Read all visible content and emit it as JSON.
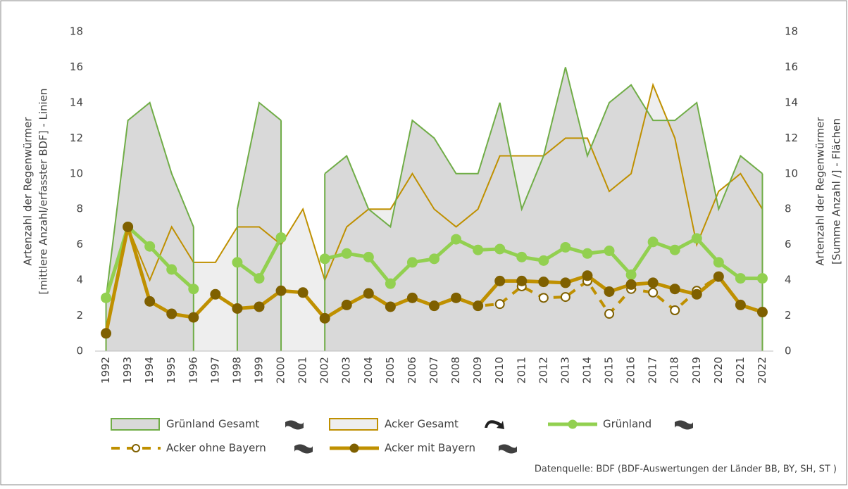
{
  "chart_data": {
    "type": "line",
    "ylabel": [
      "Artenzahl der Regenwürmer",
      "[mittlere Anzahl/erfasster BDF] - Linien"
    ],
    "y2label": [
      "Artenzahl der Regenwürmer",
      "[Summe Anzahl /] - Flächen"
    ],
    "categories": [
      "1992",
      "1993",
      "1994",
      "1995",
      "1996",
      "1997",
      "1998",
      "1999",
      "2000",
      "2001",
      "2002",
      "2003",
      "2004",
      "2005",
      "2006",
      "2007",
      "2008",
      "2009",
      "2010",
      "2011",
      "2012",
      "2013",
      "2014",
      "2015",
      "2016",
      "2017",
      "2018",
      "2019",
      "2020",
      "2021",
      "2022"
    ],
    "ylim": [
      0,
      18
    ],
    "yticks": [
      0,
      2,
      4,
      6,
      8,
      10,
      12,
      14,
      16,
      18
    ],
    "y2lim": [
      0,
      18
    ],
    "y2ticks": [
      0,
      2,
      4,
      6,
      8,
      10,
      12,
      14,
      16,
      18
    ],
    "series": [
      {
        "name": "Grünland Gesamt",
        "style": "area",
        "axis": "y2",
        "color": "#70ad47",
        "fill": "#d9d9d9",
        "values": [
          3,
          13,
          14,
          10,
          7,
          null,
          8,
          14,
          13,
          null,
          10,
          11,
          8,
          7,
          13,
          12,
          10,
          10,
          14,
          8,
          11,
          16,
          11,
          14,
          15,
          13,
          13,
          14,
          8,
          11,
          10
        ]
      },
      {
        "name": "Acker Gesamt",
        "style": "area",
        "axis": "y2",
        "color": "#bf9000",
        "fill": "#eeeeee",
        "values": [
          1,
          7,
          4,
          7,
          5,
          5,
          7,
          7,
          6,
          8,
          4,
          7,
          8,
          8,
          10,
          8,
          7,
          8,
          11,
          11,
          11,
          12,
          12,
          9,
          10,
          15,
          12,
          6,
          9,
          10,
          8
        ]
      },
      {
        "name": "Grünland",
        "style": "line",
        "color": "#92d050",
        "marker_color": "#92d050",
        "values": [
          3,
          7,
          5.9,
          4.6,
          3.5,
          null,
          5,
          4.1,
          6.4,
          null,
          5.2,
          5.5,
          5.3,
          3.8,
          5,
          5.2,
          6.3,
          5.7,
          5.75,
          5.3,
          5.1,
          5.85,
          5.5,
          5.65,
          4.3,
          6.15,
          5.7,
          6.35,
          5,
          4.1,
          4.1
        ]
      },
      {
        "name": "Acker ohne Bayern",
        "style": "dashed",
        "color": "#bf9000",
        "marker_color": "#7f6000",
        "values": [
          1,
          7,
          2.8,
          2.1,
          1.9,
          3.2,
          2.4,
          2.5,
          3.4,
          3.3,
          1.85,
          2.6,
          3.25,
          2.5,
          3,
          2.55,
          3,
          2.55,
          2.65,
          3.65,
          3,
          3.05,
          3.95,
          2.1,
          3.5,
          3.3,
          2.3,
          3.4,
          4.2,
          2.6,
          2.2
        ]
      },
      {
        "name": "Acker mit Bayern",
        "style": "line",
        "color": "#bf9000",
        "marker_color": "#7f6000",
        "values": [
          1,
          7,
          2.8,
          2.1,
          1.9,
          3.2,
          2.4,
          2.5,
          3.4,
          3.3,
          1.85,
          2.6,
          3.25,
          2.5,
          3,
          2.55,
          3,
          2.55,
          3.95,
          3.95,
          3.9,
          3.85,
          4.25,
          3.35,
          3.75,
          3.85,
          3.5,
          3.2,
          4.2,
          2.6,
          2.2
        ]
      }
    ],
    "source": "Datenquelle: BDF (BDF-Auswertungen der Länder BB, BY, SH, ST )"
  }
}
